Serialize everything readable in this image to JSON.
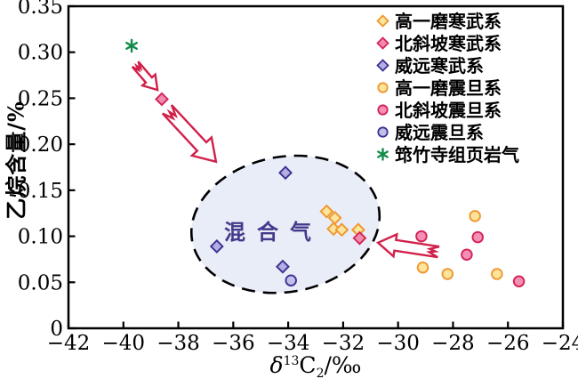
{
  "chart_data": {
    "type": "scatter",
    "title": "",
    "ylabel": "乙烷含量/%",
    "xlabel": {
      "prefix": "δ",
      "sup": "13",
      "base": "C",
      "sub": "2",
      "suffix": "/‰"
    },
    "xlim": [
      -42,
      -24
    ],
    "ylim": [
      0,
      0.35
    ],
    "grid": false,
    "legend_position": "top-right-inside",
    "x_ticks": [
      {
        "v": -42,
        "label": "−42"
      },
      {
        "v": -40,
        "label": "−40"
      },
      {
        "v": -38,
        "label": "−38"
      },
      {
        "v": -36,
        "label": "−36"
      },
      {
        "v": -34,
        "label": "−34"
      },
      {
        "v": -32,
        "label": "−32"
      },
      {
        "v": -30,
        "label": "−30"
      },
      {
        "v": -28,
        "label": "−28"
      },
      {
        "v": -26,
        "label": "−26"
      },
      {
        "v": -24,
        "label": "−24"
      }
    ],
    "y_ticks": [
      {
        "v": 0,
        "label": "0"
      },
      {
        "v": 0.05,
        "label": "0.05"
      },
      {
        "v": 0.1,
        "label": "0.10"
      },
      {
        "v": 0.15,
        "label": "0.15"
      },
      {
        "v": 0.2,
        "label": "0.20"
      },
      {
        "v": 0.25,
        "label": "0.25"
      },
      {
        "v": 0.3,
        "label": "0.30"
      },
      {
        "v": 0.35,
        "label": "0.35"
      }
    ],
    "series": [
      {
        "name": "高一磨寒武系",
        "marker": "diamond",
        "stroke": "#f0962e",
        "fill": "#fbe49c",
        "points": [
          [
            -32.6,
            0.127
          ],
          [
            -32.3,
            0.12
          ],
          [
            -32.35,
            0.108
          ],
          [
            -32.05,
            0.107
          ],
          [
            -31.45,
            0.107
          ]
        ]
      },
      {
        "name": "北斜坡寒武系",
        "marker": "diamond",
        "stroke": "#d42355",
        "fill": "#f08bb0",
        "points": [
          [
            -38.6,
            0.249
          ],
          [
            -31.4,
            0.098
          ]
        ]
      },
      {
        "name": "威远寒武系",
        "marker": "diamond",
        "stroke": "#3b3192",
        "fill": "#b5aee2",
        "points": [
          [
            -34.1,
            0.169
          ],
          [
            -36.6,
            0.089
          ],
          [
            -34.2,
            0.067
          ]
        ]
      },
      {
        "name": "高一磨震旦系",
        "marker": "circle",
        "stroke": "#f0962e",
        "fill": "#fbe49c",
        "points": [
          [
            -27.2,
            0.122
          ],
          [
            -29.1,
            0.066
          ],
          [
            -28.2,
            0.059
          ],
          [
            -26.4,
            0.059
          ]
        ]
      },
      {
        "name": "北斜坡震旦系",
        "marker": "circle",
        "stroke": "#d42355",
        "fill": "#f490b6",
        "points": [
          [
            -29.15,
            0.1
          ],
          [
            -27.1,
            0.099
          ],
          [
            -27.5,
            0.08
          ],
          [
            -25.6,
            0.051
          ]
        ]
      },
      {
        "name": "威远震旦系",
        "marker": "circle",
        "stroke": "#3b3192",
        "fill": "#c4bfe8",
        "points": [
          [
            -33.9,
            0.052
          ]
        ]
      },
      {
        "name": "筇竹寺组页岩气",
        "marker": "asterisk",
        "stroke": "#138c49",
        "fill": "#138c49",
        "points": [
          [
            -39.7,
            0.307
          ]
        ]
      }
    ],
    "annotations": {
      "ellipse": {
        "label": "混合气",
        "label_color": "#44398c",
        "fill": "#e9edf8",
        "border_color": "#000000",
        "border_style": "dashed",
        "cx": -34.1,
        "cy": 0.113,
        "rx_units": 3.45,
        "ry_units": 0.0735,
        "rotate_deg": -10
      },
      "arrows": [
        {
          "from": [
            -39.57,
            0.287
          ],
          "to": [
            -38.76,
            0.259
          ],
          "shaft": 9,
          "head": 19,
          "color": "#d1204a"
        },
        {
          "from": [
            -38.41,
            0.238
          ],
          "to": [
            -36.63,
            0.181
          ],
          "shaft": 14,
          "head": 30,
          "color": "#d1204a"
        },
        {
          "from": [
            -28.53,
            0.083
          ],
          "to": [
            -30.73,
            0.093
          ],
          "shaft": 12,
          "head": 25,
          "color": "#d1204a"
        }
      ]
    },
    "axis_color": "#000000",
    "background": "#ffffff"
  }
}
